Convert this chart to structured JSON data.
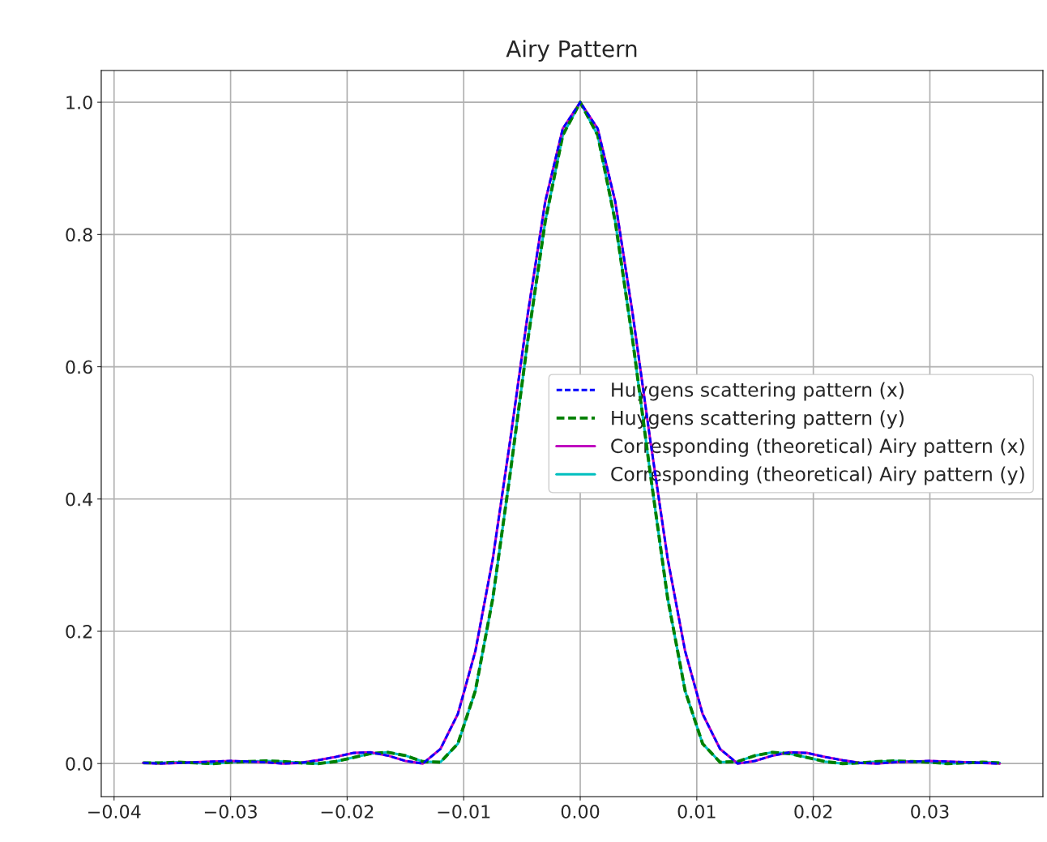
{
  "chart_data": {
    "type": "line",
    "title": "Airy Pattern",
    "x": [
      -0.0375,
      -0.036,
      -0.0345,
      -0.033,
      -0.0315,
      -0.03,
      -0.0285,
      -0.027,
      -0.0255,
      -0.024,
      -0.0225,
      -0.021,
      -0.0195,
      -0.018,
      -0.0165,
      -0.015,
      -0.0135,
      -0.012,
      -0.0105,
      -0.009,
      -0.0075,
      -0.006,
      -0.0045,
      -0.003,
      -0.0015,
      0,
      0.0015,
      0.003,
      0.0045,
      0.006,
      0.0075,
      0.009,
      0.0105,
      0.012,
      0.0135,
      0.015,
      0.0165,
      0.018,
      0.0195,
      0.021,
      0.0225,
      0.024,
      0.0255,
      0.027,
      0.0285,
      0.03,
      0.0315,
      0.033,
      0.0345,
      0.036
    ],
    "series": [
      {
        "name": "Huygens scattering pattern (x)",
        "color": "#0000ff",
        "line_style": "dashed",
        "values": [
          0.001,
          0.0,
          0.001,
          0.002,
          0.003,
          0.004,
          0.003,
          0.002,
          0.0,
          0.001,
          0.005,
          0.01,
          0.016,
          0.017,
          0.012,
          0.004,
          0.0,
          0.022,
          0.075,
          0.17,
          0.31,
          0.49,
          0.68,
          0.85,
          0.96,
          1.0,
          0.96,
          0.85,
          0.68,
          0.49,
          0.31,
          0.17,
          0.075,
          0.022,
          0.0,
          0.004,
          0.012,
          0.017,
          0.016,
          0.01,
          0.005,
          0.001,
          0.0,
          0.002,
          0.003,
          0.004,
          0.003,
          0.002,
          0.001,
          0.0
        ]
      },
      {
        "name": "Huygens scattering pattern (y)",
        "color": "#008000",
        "line_style": "dashed",
        "values": [
          0.001,
          0.001,
          0.002,
          0.001,
          0.0,
          0.002,
          0.003,
          0.004,
          0.003,
          0.001,
          0.0,
          0.003,
          0.009,
          0.015,
          0.017,
          0.012,
          0.003,
          0.002,
          0.03,
          0.11,
          0.25,
          0.44,
          0.64,
          0.82,
          0.95,
          1.0,
          0.95,
          0.82,
          0.64,
          0.44,
          0.25,
          0.11,
          0.03,
          0.002,
          0.003,
          0.012,
          0.017,
          0.015,
          0.009,
          0.003,
          0.0,
          0.001,
          0.003,
          0.004,
          0.003,
          0.002,
          0.0,
          0.001,
          0.002,
          0.001
        ]
      },
      {
        "name": "Corresponding (theoretical) Airy pattern (x)",
        "color": "#bf00bf",
        "line_style": "solid",
        "values": [
          0.001,
          0.0,
          0.001,
          0.002,
          0.003,
          0.004,
          0.003,
          0.002,
          0.0,
          0.001,
          0.005,
          0.01,
          0.016,
          0.017,
          0.012,
          0.004,
          0.0,
          0.022,
          0.075,
          0.17,
          0.31,
          0.49,
          0.68,
          0.85,
          0.96,
          1.0,
          0.96,
          0.85,
          0.68,
          0.49,
          0.31,
          0.17,
          0.075,
          0.022,
          0.0,
          0.004,
          0.012,
          0.017,
          0.016,
          0.01,
          0.005,
          0.001,
          0.0,
          0.002,
          0.003,
          0.004,
          0.003,
          0.002,
          0.001,
          0.0
        ]
      },
      {
        "name": "Corresponding (theoretical) Airy pattern (y)",
        "color": "#00bfbf",
        "line_style": "solid",
        "values": [
          0.001,
          0.001,
          0.002,
          0.001,
          0.0,
          0.002,
          0.003,
          0.004,
          0.003,
          0.001,
          0.0,
          0.003,
          0.009,
          0.015,
          0.017,
          0.012,
          0.003,
          0.002,
          0.03,
          0.11,
          0.25,
          0.44,
          0.64,
          0.82,
          0.95,
          1.0,
          0.95,
          0.82,
          0.64,
          0.44,
          0.25,
          0.11,
          0.03,
          0.002,
          0.003,
          0.012,
          0.017,
          0.015,
          0.009,
          0.003,
          0.0,
          0.001,
          0.003,
          0.004,
          0.003,
          0.002,
          0.0,
          0.001,
          0.002,
          0.001
        ]
      }
    ],
    "xlim": [
      -0.0411,
      0.0397
    ],
    "ylim": [
      -0.05,
      1.048
    ],
    "xticks": [
      {
        "value": -0.04,
        "label": "−0.04"
      },
      {
        "value": -0.03,
        "label": "−0.03"
      },
      {
        "value": -0.02,
        "label": "−0.02"
      },
      {
        "value": -0.01,
        "label": "−0.01"
      },
      {
        "value": 0,
        "label": "0.00"
      },
      {
        "value": 0.01,
        "label": "0.01"
      },
      {
        "value": 0.02,
        "label": "0.02"
      },
      {
        "value": 0.03,
        "label": "0.03"
      }
    ],
    "yticks": [
      {
        "value": 0,
        "label": "0.0"
      },
      {
        "value": 0.2,
        "label": "0.2"
      },
      {
        "value": 0.4,
        "label": "0.4"
      },
      {
        "value": 0.6,
        "label": "0.6"
      },
      {
        "value": 0.8,
        "label": "0.8"
      },
      {
        "value": 1.0,
        "label": "1.0"
      }
    ],
    "grid": true,
    "legend": "center right"
  }
}
